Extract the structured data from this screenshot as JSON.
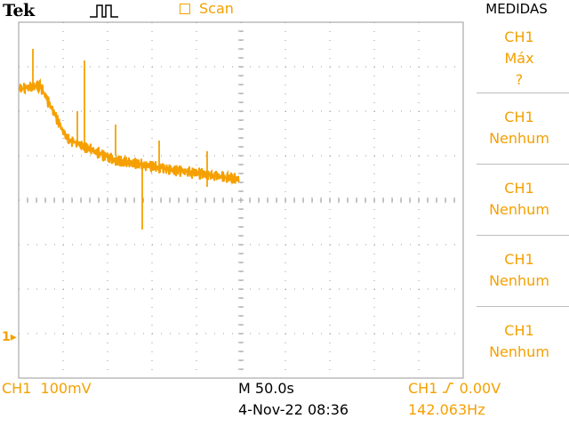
{
  "header": {
    "logo": "Tek",
    "trigger_icon": "trigger-pulse-icon",
    "mode_label": "Scan"
  },
  "menu": {
    "title": "MEDIDAS",
    "buttons": [
      {
        "line1": "CH1",
        "line2": "Máx",
        "line3": "?"
      },
      {
        "line1": "CH1",
        "line2": "Nenhum"
      },
      {
        "line1": "CH1",
        "line2": "Nenhum"
      },
      {
        "line1": "CH1",
        "line2": "Nenhum"
      },
      {
        "line1": "CH1",
        "line2": "Nenhum"
      }
    ]
  },
  "channel_marker": "1",
  "status": {
    "ch1_scale": "CH1  100mV",
    "timebase": "M 50.0s",
    "date_time": "4-Nov-22 08:36",
    "trigger_channel": "CH1",
    "trigger_level": "0.00V",
    "frequency": "142.063Hz"
  },
  "colors": {
    "trace": "#f5a000",
    "grid": "#9a9a9a"
  }
}
